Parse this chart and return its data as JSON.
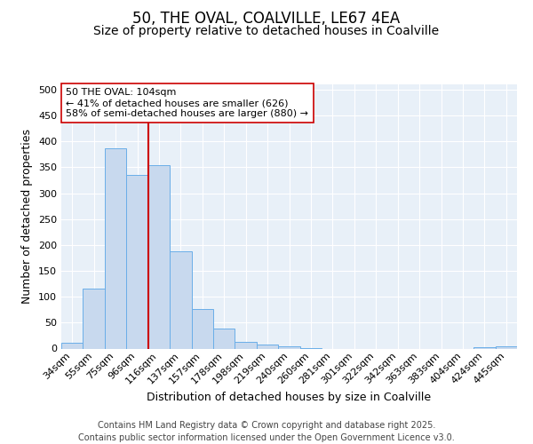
{
  "title1": "50, THE OVAL, COALVILLE, LE67 4EA",
  "title2": "Size of property relative to detached houses in Coalville",
  "xlabel": "Distribution of detached houses by size in Coalville",
  "ylabel": "Number of detached properties",
  "categories": [
    "34sqm",
    "55sqm",
    "75sqm",
    "96sqm",
    "116sqm",
    "137sqm",
    "157sqm",
    "178sqm",
    "198sqm",
    "219sqm",
    "240sqm",
    "260sqm",
    "281sqm",
    "301sqm",
    "322sqm",
    "342sqm",
    "363sqm",
    "383sqm",
    "404sqm",
    "424sqm",
    "445sqm"
  ],
  "values": [
    11,
    115,
    387,
    335,
    354,
    188,
    77,
    38,
    13,
    7,
    4,
    1,
    0,
    0,
    0,
    0,
    0,
    0,
    0,
    3,
    4
  ],
  "bar_color": "#c8d9ee",
  "bar_edge_color": "#6aaee8",
  "vline_x_index": 3.5,
  "vline_color": "#cc0000",
  "annotation_text": "50 THE OVAL: 104sqm\n← 41% of detached houses are smaller (626)\n58% of semi-detached houses are larger (880) →",
  "annot_edge_color": "#cc0000",
  "footer1": "Contains HM Land Registry data © Crown copyright and database right 2025.",
  "footer2": "Contains public sector information licensed under the Open Government Licence v3.0.",
  "ylim_max": 510,
  "yticks": [
    0,
    50,
    100,
    150,
    200,
    250,
    300,
    350,
    400,
    450,
    500
  ],
  "bg_color": "#e8f0f8",
  "title1_fontsize": 12,
  "title2_fontsize": 10,
  "axis_label_fontsize": 9,
  "tick_fontsize": 8,
  "annot_fontsize": 8,
  "footer_fontsize": 7
}
